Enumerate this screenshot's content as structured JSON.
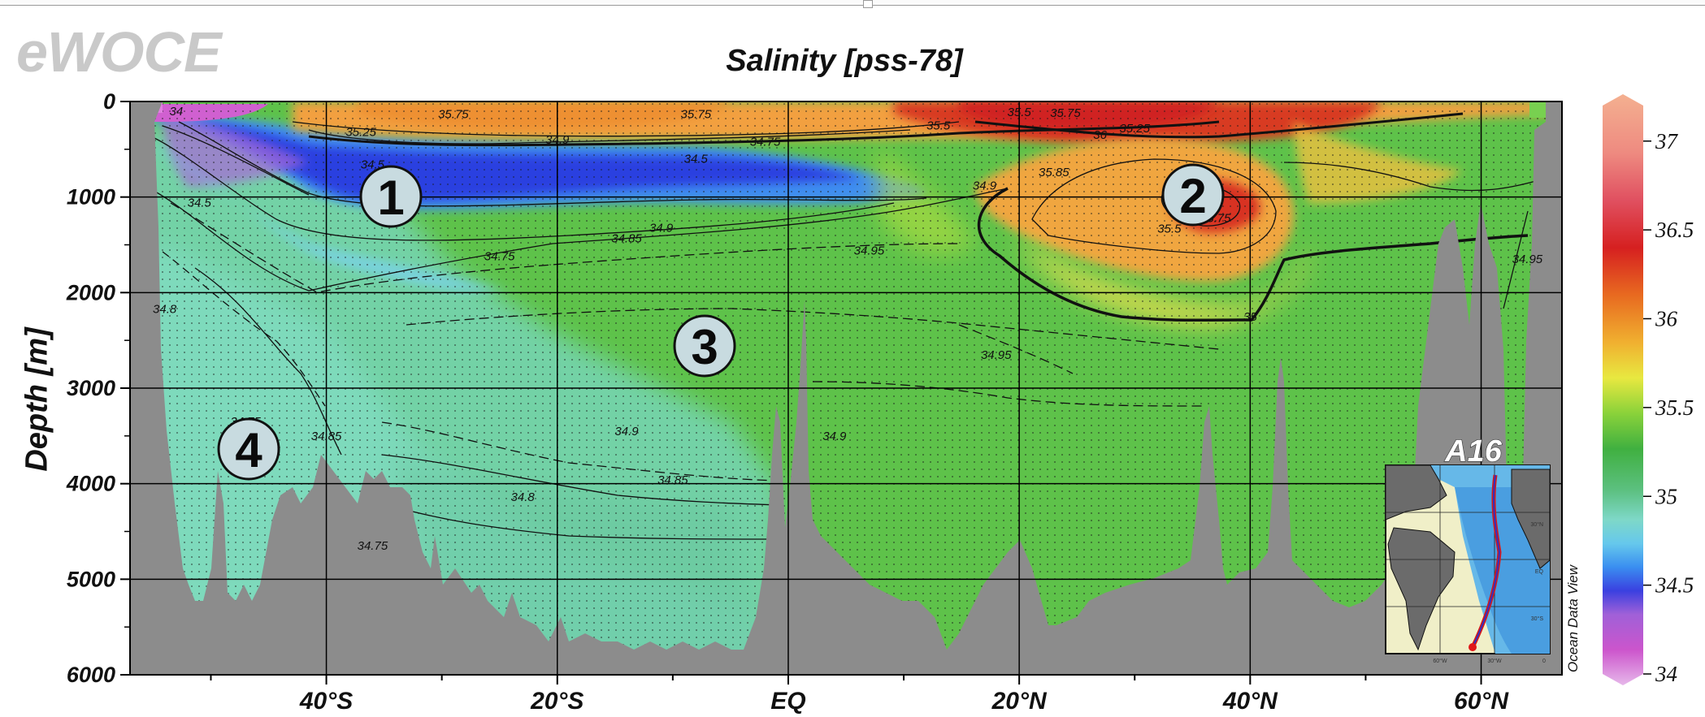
{
  "logo": "eWOCE",
  "inset": {
    "title": "A16",
    "ticks": [
      "30°N",
      "EQ",
      "30°S",
      "60°W",
      "30°W",
      "0"
    ]
  },
  "credit": "Ocean Data View",
  "colors": {
    "land": "#8c8c8c",
    "grid": "#000000",
    "low_salinity": "#d050d0",
    "mid_salinity": "#4cbf3a",
    "high_salinity": "#d62020"
  },
  "markers": [
    "1",
    "2",
    "3",
    "4"
  ],
  "chart_data": {
    "type": "heatmap",
    "title": "Salinity [pss-78]",
    "ylabel": "Depth [m]",
    "xlabel": "",
    "xlim": [
      -57,
      67
    ],
    "ylim": [
      6000,
      0
    ],
    "x_ticks": [
      {
        "value": -40,
        "label": "40°S"
      },
      {
        "value": -20,
        "label": "20°S"
      },
      {
        "value": 0,
        "label": "EQ"
      },
      {
        "value": 20,
        "label": "20°N"
      },
      {
        "value": 40,
        "label": "40°N"
      },
      {
        "value": 60,
        "label": "60°N"
      }
    ],
    "y_ticks": [
      0,
      1000,
      2000,
      3000,
      4000,
      5000,
      6000
    ],
    "colorbar": {
      "range": [
        34,
        37.2
      ],
      "ticks": [
        "34",
        "34.5",
        "35",
        "35.5",
        "36",
        "36.5",
        "37"
      ]
    },
    "contour_labels": [
      {
        "text": "34",
        "lat": -53,
        "depth": 100
      },
      {
        "text": "35.75",
        "lat": -29,
        "depth": 130
      },
      {
        "text": "35.25",
        "lat": -37,
        "depth": 320
      },
      {
        "text": "34.9",
        "lat": -20,
        "depth": 400
      },
      {
        "text": "35.75",
        "lat": -8,
        "depth": 130
      },
      {
        "text": "34.75",
        "lat": -2,
        "depth": 420
      },
      {
        "text": "34.5",
        "lat": -36,
        "depth": 660
      },
      {
        "text": "34.5",
        "lat": -8,
        "depth": 600
      },
      {
        "text": "34.5",
        "lat": -51,
        "depth": 1060
      },
      {
        "text": "34.9",
        "lat": -11,
        "depth": 1320
      },
      {
        "text": "34.85",
        "lat": -14,
        "depth": 1430
      },
      {
        "text": "34.75",
        "lat": -25,
        "depth": 1620
      },
      {
        "text": "34.95",
        "lat": 7,
        "depth": 1560
      },
      {
        "text": "34.9",
        "lat": 17,
        "depth": 880
      },
      {
        "text": "35.5",
        "lat": 13,
        "depth": 250
      },
      {
        "text": "35.5",
        "lat": 20,
        "depth": 110
      },
      {
        "text": "35.75",
        "lat": 24,
        "depth": 120
      },
      {
        "text": "35.25",
        "lat": 30,
        "depth": 280
      },
      {
        "text": "36",
        "lat": 27,
        "depth": 350
      },
      {
        "text": "35.85",
        "lat": 23,
        "depth": 740
      },
      {
        "text": "35.5",
        "lat": 33,
        "depth": 1330
      },
      {
        "text": "35.75",
        "lat": 37,
        "depth": 1220
      },
      {
        "text": "34.95",
        "lat": 64,
        "depth": 1650
      },
      {
        "text": "35",
        "lat": 40,
        "depth": 2250
      },
      {
        "text": "34.8",
        "lat": -54,
        "depth": 2170
      },
      {
        "text": "34.95",
        "lat": 18,
        "depth": 2650
      },
      {
        "text": "34.75",
        "lat": -47,
        "depth": 3350
      },
      {
        "text": "34.85",
        "lat": -40,
        "depth": 3500
      },
      {
        "text": "34.9",
        "lat": -14,
        "depth": 3450
      },
      {
        "text": "34.9",
        "lat": 4,
        "depth": 3500
      },
      {
        "text": "34.85",
        "lat": -10,
        "depth": 3960
      },
      {
        "text": "34.8",
        "lat": -23,
        "depth": 4140
      },
      {
        "text": "34.75",
        "lat": -36,
        "depth": 4650
      }
    ]
  }
}
